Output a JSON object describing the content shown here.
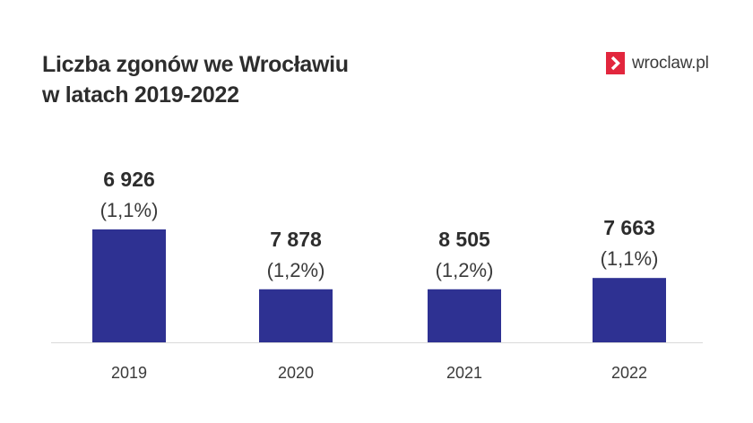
{
  "title_lines": [
    "Liczba zgonów we Wrocławiu",
    "w latach 2019-2022"
  ],
  "logo": {
    "text": "wroclaw.pl",
    "icon": "chevron-right-icon",
    "color": "#e2263d"
  },
  "colors": {
    "bar": "#2e3192",
    "axis": "#d9d9d9",
    "value_text": "#2d2d2d",
    "pct_text": "#3a3a3a",
    "tick_text": "#3a3a3a"
  },
  "chart_data": {
    "type": "bar",
    "title": "Liczba zgonów we Wrocławiu w latach 2019-2022",
    "categories": [
      "2019",
      "2020",
      "2021",
      "2022"
    ],
    "series": [
      {
        "values": [
          6926,
          7878,
          8505,
          7663
        ],
        "value_labels": [
          "6 926",
          "7 878",
          "8 505",
          "7 663"
        ],
        "percent_labels": [
          "(1,1%)",
          "(1,2%)",
          "(1,2%)",
          "(1,1%)"
        ]
      }
    ],
    "bar_levels": [
      1.0,
      0.47,
      0.47,
      0.57
    ],
    "xlabel": "",
    "ylabel": "",
    "grid": false,
    "legend": "none"
  }
}
